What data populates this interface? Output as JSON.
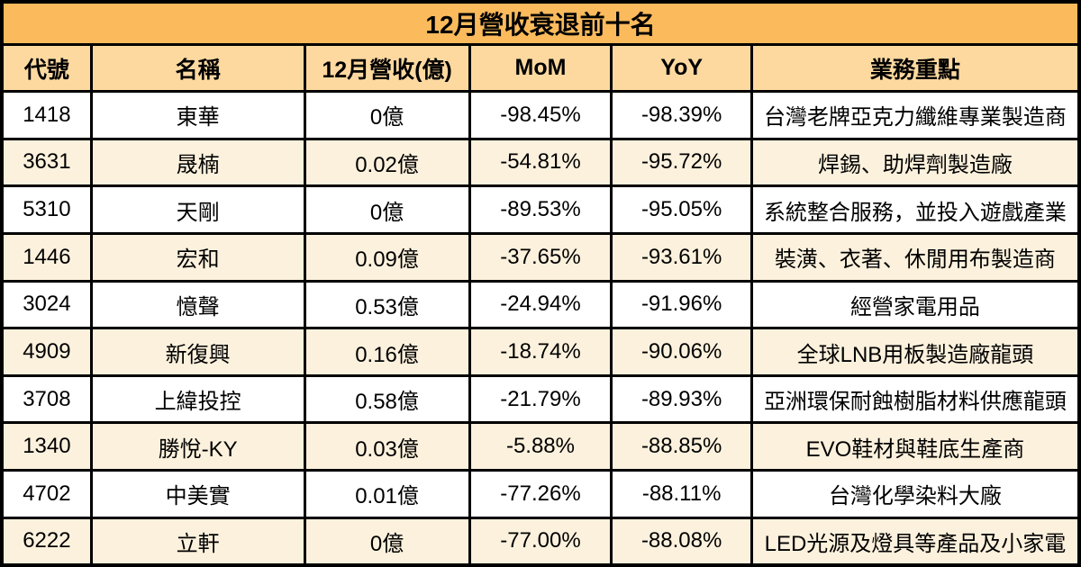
{
  "title": "12月營收衰退前十名",
  "columns": {
    "code": "代號",
    "name": "名稱",
    "revenue": "12月營收(億)",
    "mom": "MoM",
    "yoy": "YoY",
    "business": "業務重點"
  },
  "rows": [
    {
      "code": "1418",
      "name": "東華",
      "revenue": "0億",
      "mom": "-98.45%",
      "yoy": "-98.39%",
      "business": "台灣老牌亞克力纖維專業製造商"
    },
    {
      "code": "3631",
      "name": "晟楠",
      "revenue": "0.02億",
      "mom": "-54.81%",
      "yoy": "-95.72%",
      "business": "焊錫、助焊劑製造廠"
    },
    {
      "code": "5310",
      "name": "天剛",
      "revenue": "0億",
      "mom": "-89.53%",
      "yoy": "-95.05%",
      "business": "系統整合服務，並投入遊戲產業"
    },
    {
      "code": "1446",
      "name": "宏和",
      "revenue": "0.09億",
      "mom": "-37.65%",
      "yoy": "-93.61%",
      "business": "裝潢、衣著、休閒用布製造商"
    },
    {
      "code": "3024",
      "name": "憶聲",
      "revenue": "0.53億",
      "mom": "-24.94%",
      "yoy": "-91.96%",
      "business": "經營家電用品"
    },
    {
      "code": "4909",
      "name": "新復興",
      "revenue": "0.16億",
      "mom": "-18.74%",
      "yoy": "-90.06%",
      "business": "全球LNB用板製造廠龍頭"
    },
    {
      "code": "3708",
      "name": "上緯投控",
      "revenue": "0.58億",
      "mom": "-21.79%",
      "yoy": "-89.93%",
      "business": "亞洲環保耐蝕樹脂材料供應龍頭"
    },
    {
      "code": "1340",
      "name": "勝悅-KY",
      "revenue": "0.03億",
      "mom": "-5.88%",
      "yoy": "-88.85%",
      "business": "EVO鞋材與鞋底生產商"
    },
    {
      "code": "4702",
      "name": "中美實",
      "revenue": "0.01億",
      "mom": "-77.26%",
      "yoy": "-88.11%",
      "business": "台灣化學染料大廠"
    },
    {
      "code": "6222",
      "name": "立軒",
      "revenue": "0億",
      "mom": "-77.00%",
      "yoy": "-88.08%",
      "business": "LED光源及燈具等產品及小家電"
    }
  ],
  "colors": {
    "title_bg": "#fbbb5c",
    "header_bg": "#fdd9a0",
    "row_bg": "#ffffff",
    "row_alt_bg": "#fcf1dd",
    "border": "#000000",
    "text": "#000000"
  }
}
